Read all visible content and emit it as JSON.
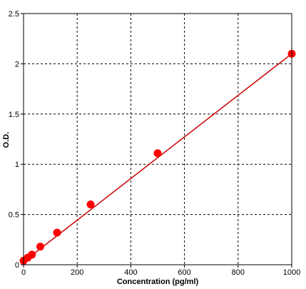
{
  "chart_data": {
    "type": "scatter",
    "title": "",
    "xlabel": "Concentration (pg/ml)",
    "ylabel": "O.D.",
    "xlim": [
      0,
      1000
    ],
    "ylim": [
      0,
      2.5
    ],
    "x_ticks": [
      0,
      200,
      400,
      600,
      800,
      1000
    ],
    "y_ticks": [
      0,
      0.5,
      1,
      1.5,
      2,
      2.5
    ],
    "x_tick_labels": [
      "0",
      "200",
      "400",
      "600",
      "800",
      "1000"
    ],
    "y_tick_labels": [
      "0",
      "0.5",
      "1",
      "1.5",
      "2",
      "2.5"
    ],
    "grid": true,
    "legend": "none",
    "series": [
      {
        "x": [
          0,
          15.6,
          31.2,
          62.5,
          125,
          250,
          500,
          1000
        ],
        "y": [
          0.04,
          0.07,
          0.1,
          0.18,
          0.32,
          0.6,
          1.11,
          2.1
        ],
        "marker": "circle",
        "color": "#ff0000"
      }
    ],
    "fit_line": {
      "x": [
        0,
        1000
      ],
      "y": [
        0.03,
        2.1
      ],
      "color": "#cc0000"
    }
  }
}
